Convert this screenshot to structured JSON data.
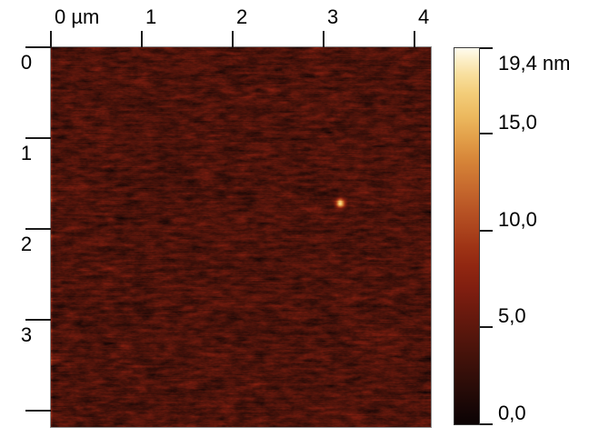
{
  "figure": {
    "kind": "AFM height image with false-color scale bar",
    "background_color": "#ffffff"
  },
  "chart_data": {
    "type": "heatmap",
    "title": "",
    "x_axis": {
      "unit": "µm",
      "ticks": [
        0,
        1,
        2,
        3,
        4
      ],
      "tick_labels": [
        "0 µm",
        "1",
        "2",
        "3",
        "4"
      ],
      "range_um": [
        0,
        4.18
      ]
    },
    "y_axis": {
      "unit": "µm",
      "ticks": [
        0,
        1,
        2,
        3,
        4
      ],
      "tick_labels": [
        "0",
        "1",
        "2",
        "3",
        ""
      ],
      "range_um": [
        0,
        4.18
      ]
    },
    "colorbar": {
      "unit": "nm",
      "min": 0.0,
      "max": 19.4,
      "tick_values": [
        19.4,
        15.0,
        10.0,
        5.0,
        0.0
      ],
      "tick_labels": [
        "19,4 nm",
        "15,0",
        "10,0",
        "5,0",
        "0,0"
      ]
    },
    "scan_area": {
      "width_um": 4.18,
      "height_um": 4.18
    },
    "background": {
      "mean_height_nm": 4.0,
      "noise_std_nm": 0.9,
      "texture": "horizontally-streaked granular noise (scan lines)"
    },
    "features": [
      {
        "type": "particle",
        "x_um": 3.18,
        "y_um": 1.71,
        "peak_nm": 18.6,
        "sigma_um": 0.033
      }
    ],
    "palette": [
      [
        0.0,
        "#0b0304"
      ],
      [
        0.05,
        "#1a0706"
      ],
      [
        0.1,
        "#2a0c08"
      ],
      [
        0.17,
        "#40110a"
      ],
      [
        0.24,
        "#57160c"
      ],
      [
        0.3,
        "#6b1a0e"
      ],
      [
        0.36,
        "#801e10"
      ],
      [
        0.42,
        "#912711"
      ],
      [
        0.47,
        "#9e3315"
      ],
      [
        0.52,
        "#ac441d"
      ],
      [
        0.57,
        "#b85425"
      ],
      [
        0.63,
        "#c76a2e"
      ],
      [
        0.7,
        "#d68438"
      ],
      [
        0.76,
        "#e29f49"
      ],
      [
        0.82,
        "#ecb95f"
      ],
      [
        0.88,
        "#f3cd79"
      ],
      [
        0.93,
        "#f8df9e"
      ],
      [
        0.97,
        "#fcefc9"
      ],
      [
        1.0,
        "#fffcef"
      ]
    ]
  }
}
